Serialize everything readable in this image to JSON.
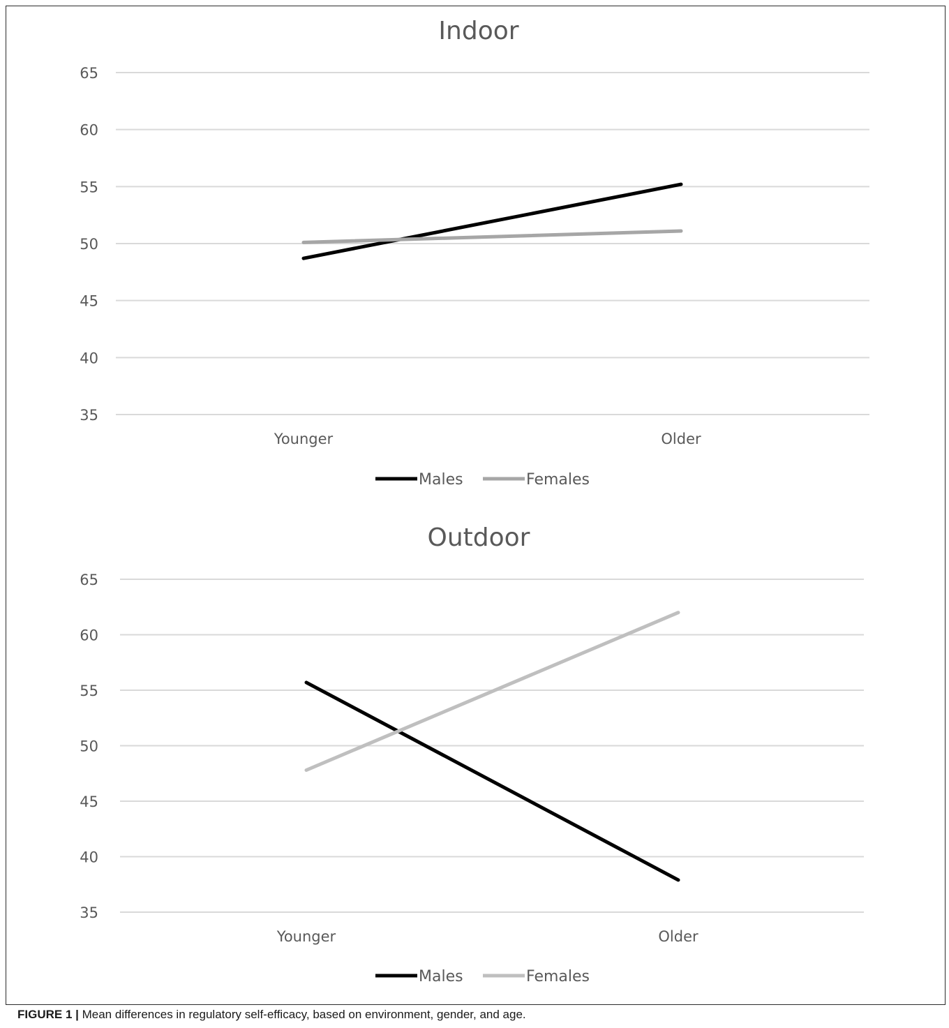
{
  "chart_data": [
    {
      "type": "line",
      "title": "Indoor",
      "categories": [
        "Younger",
        "Older"
      ],
      "ylim": [
        35,
        65
      ],
      "yticks": [
        35,
        40,
        45,
        50,
        55,
        60,
        65
      ],
      "grid": true,
      "legend": "bottom",
      "series": [
        {
          "name": "Males",
          "values": [
            48.7,
            55.2
          ],
          "color": "#000000"
        },
        {
          "name": "Females",
          "values": [
            50.1,
            51.1
          ],
          "color": "#a6a6a6"
        }
      ]
    },
    {
      "type": "line",
      "title": "Outdoor",
      "categories": [
        "Younger",
        "Older"
      ],
      "ylim": [
        35,
        65
      ],
      "yticks": [
        35,
        40,
        45,
        50,
        55,
        60,
        65
      ],
      "grid": true,
      "legend": "bottom",
      "series": [
        {
          "name": "Males",
          "values": [
            55.7,
            37.9
          ],
          "color": "#000000"
        },
        {
          "name": "Females",
          "values": [
            47.8,
            62.0
          ],
          "color": "#bfbfbf"
        }
      ]
    }
  ],
  "caption": {
    "label": "FIGURE 1 |",
    "text": " Mean differences in regulatory self-efficacy, based on environment, gender, and age."
  }
}
